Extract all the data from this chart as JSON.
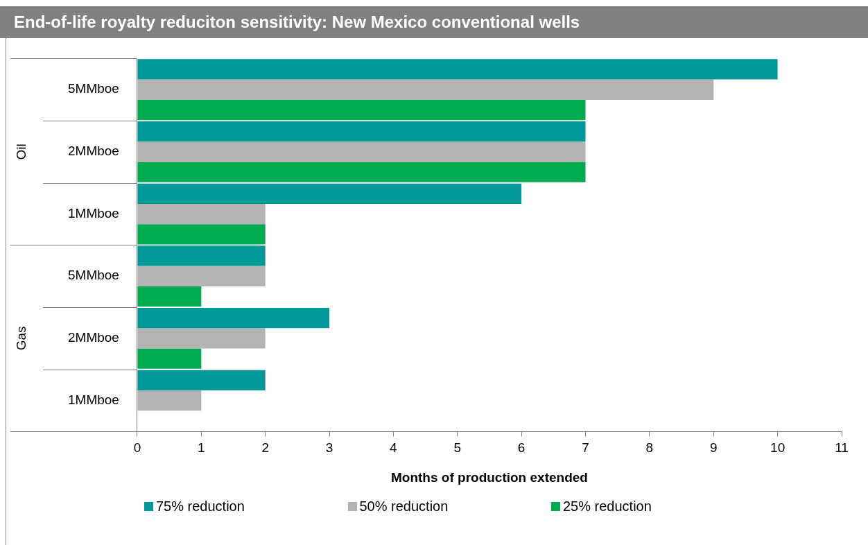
{
  "chart_data": {
    "type": "bar",
    "orientation": "horizontal",
    "title": "End-of-life royalty reduciton sensitivity: New Mexico conventional wells",
    "xlabel": "Months of production extended",
    "categories": [
      "5MMboe",
      "2MMboe",
      "1MMboe",
      "5MMboe",
      "2MMboe",
      "1MMboe"
    ],
    "series": [
      {
        "name": "75% reduction",
        "color": "#009999",
        "values": [
          10,
          7,
          6,
          2,
          3,
          2
        ]
      },
      {
        "name": "50% reduction",
        "color": "#b3b3b5",
        "values": [
          9,
          7,
          2,
          2,
          2,
          1
        ]
      },
      {
        "name": "25% reduction",
        "color": "#00aa4f",
        "values": [
          7,
          7,
          2,
          1,
          1,
          0
        ]
      }
    ],
    "annotations": [
      "Oil",
      "Gas"
    ],
    "xlim": [
      0,
      11
    ],
    "xticks": [
      0,
      1,
      2,
      3,
      4,
      5,
      6,
      7,
      8,
      9,
      10,
      11
    ],
    "grid": false,
    "legend": "bottom"
  }
}
